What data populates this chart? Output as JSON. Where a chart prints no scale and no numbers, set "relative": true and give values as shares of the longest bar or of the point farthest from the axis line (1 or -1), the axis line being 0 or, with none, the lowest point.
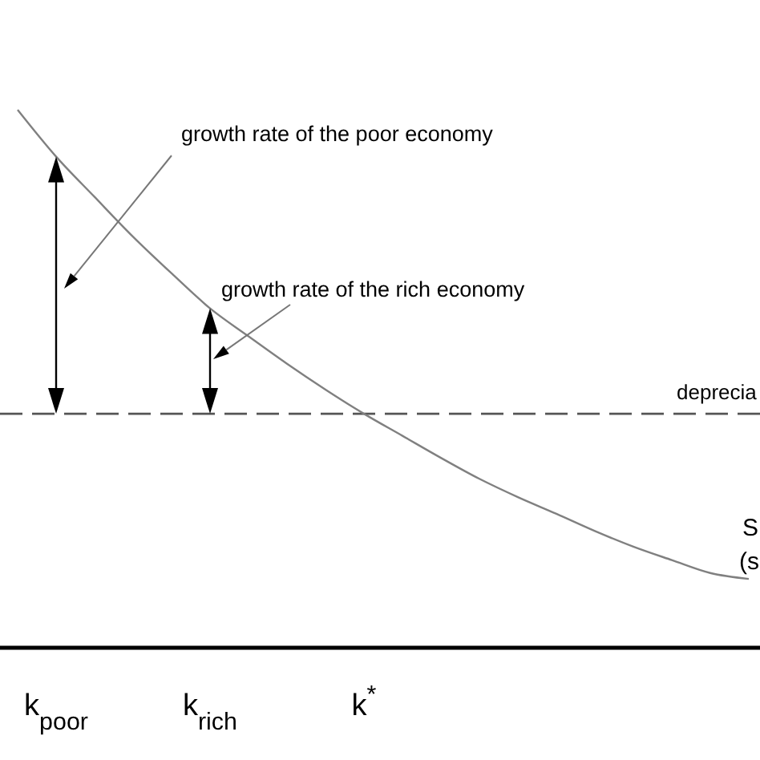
{
  "chart_data": {
    "type": "line",
    "relative": true,
    "categories": [
      null,
      "k$_{poor}$",
      null,
      null,
      null,
      "k$_{rich}$",
      null,
      null,
      null,
      "k$^{*}$",
      null,
      null,
      null,
      null,
      null,
      null,
      null,
      null,
      null,
      null
    ],
    "series": [
      {
        "color": "#808080",
        "values": [
          1,
          0.913,
          0.838,
          0.764,
          0.696,
          0.631,
          0.579,
          0.528,
          0.48,
          0.435,
          0.394,
          0.353,
          0.314,
          0.28,
          0.249,
          0.217,
          0.188,
          0.163,
          0.139,
          0.128
        ]
      }
    ],
    "ref_lines": [
      {
        "axis": "y",
        "value": 0.435,
        "label": "deprecia",
        "color": "#555555",
        "line_style": "dashed"
      }
    ],
    "annotations": [
      "growth rate of the poor economy",
      "growth rate of the rich economy",
      "S",
      "(s"
    ],
    "marker": "none",
    "line_style": "solid"
  }
}
